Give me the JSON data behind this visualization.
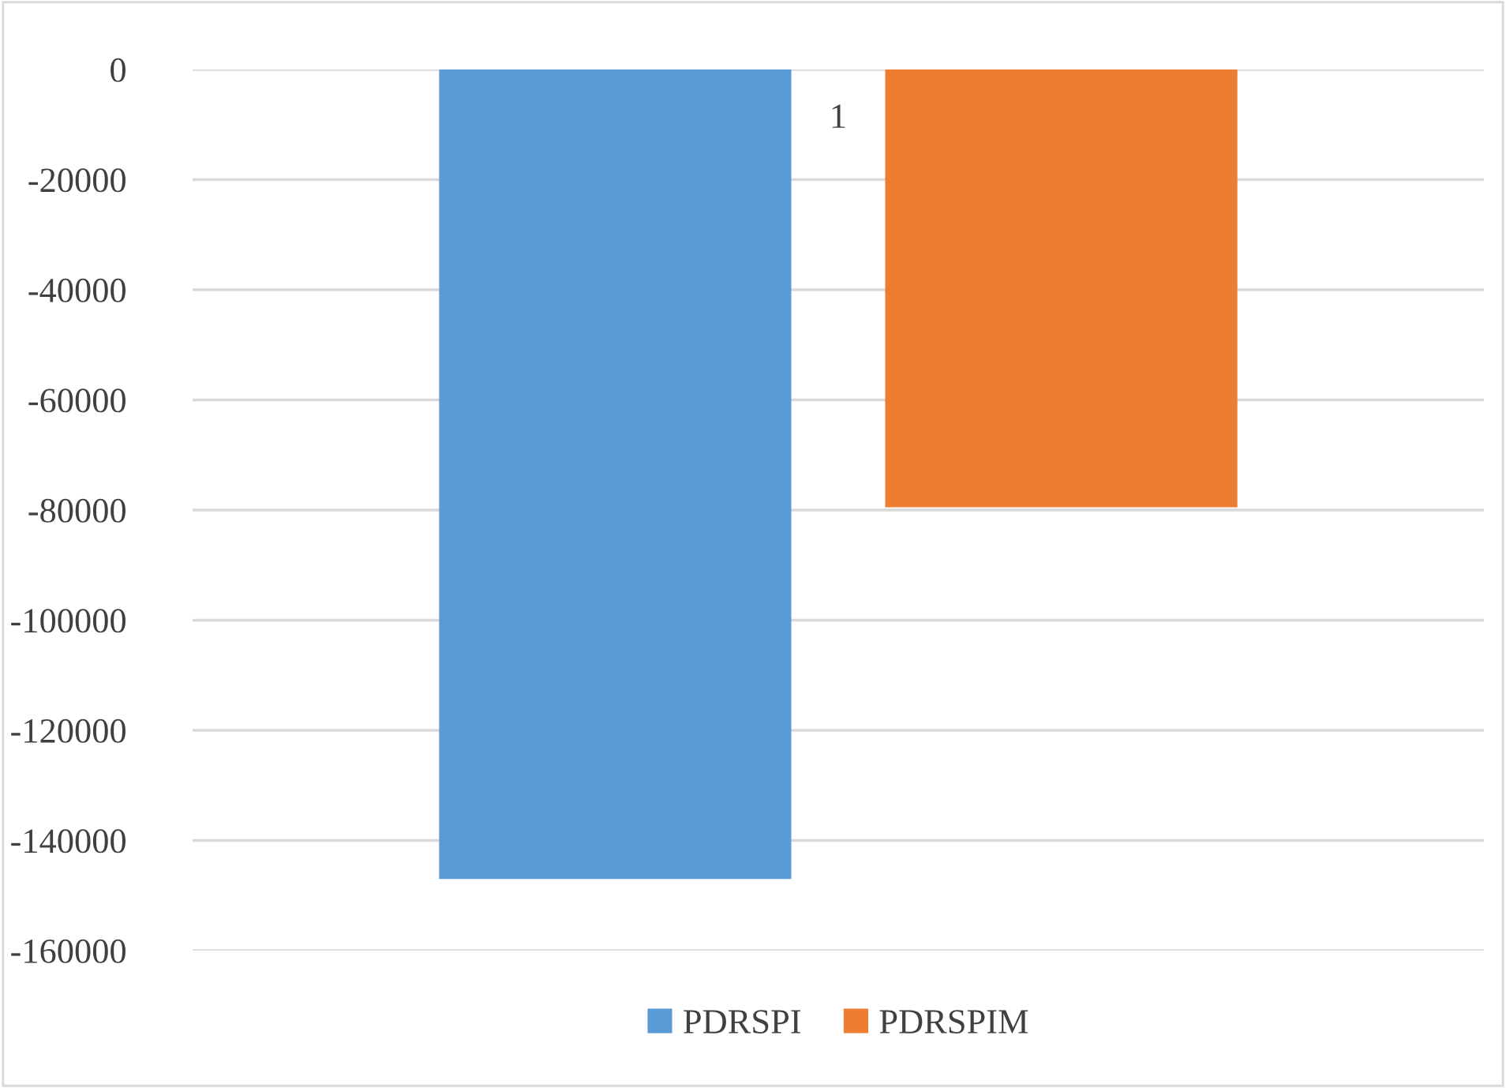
{
  "chart_data": {
    "type": "bar",
    "categories": [
      "1"
    ],
    "series": [
      {
        "name": "PDRSPI",
        "color": "#5b9bd5",
        "values": [
          -147000
        ]
      },
      {
        "name": "PDRSPIM",
        "color": "#ed7d31",
        "values": [
          -79500
        ]
      }
    ],
    "ylim": [
      -160000,
      0
    ],
    "yticks": [
      -160000,
      -140000,
      -120000,
      -100000,
      -80000,
      -60000,
      -40000,
      -20000,
      0
    ],
    "grid": "y",
    "legend": "bottom"
  }
}
